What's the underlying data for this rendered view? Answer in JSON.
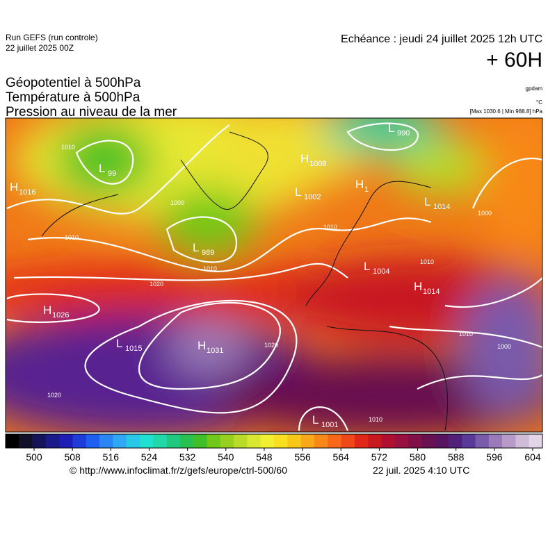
{
  "header": {
    "run": "Run GEFS (run controle)",
    "run_date": "22 juillet 2025 00Z",
    "valid": "Echéance : jeudi 24 juillet 2025 12h UTC",
    "lead": "+ 60H",
    "fields": [
      "Géopotentiel à 500hPa",
      "Température à 500hPa",
      "Pression au niveau de la mer"
    ],
    "units": [
      "gpdam",
      "°C"
    ],
    "range": "[Max 1030.6 | Min 988.8] hPa"
  },
  "map": {
    "centers": [
      {
        "type": "H",
        "value": "1016"
      },
      {
        "type": "L",
        "value": "99"
      },
      {
        "type": "L",
        "value": "990"
      },
      {
        "type": "H",
        "value": "1008"
      },
      {
        "type": "L",
        "value": "1002"
      },
      {
        "type": "H",
        "value": "1"
      },
      {
        "type": "L",
        "value": "1014"
      },
      {
        "type": "L",
        "value": "989"
      },
      {
        "type": "L",
        "value": "1004"
      },
      {
        "type": "H",
        "value": "1014"
      },
      {
        "type": "H",
        "value": "1026"
      },
      {
        "type": "L",
        "value": "1015"
      },
      {
        "type": "H",
        "value": "1031"
      },
      {
        "type": "L",
        "value": "1001"
      }
    ],
    "isobar_labels": [
      "1010",
      "1010",
      "1000",
      "1010",
      "1020",
      "1020",
      "1020",
      "1010",
      "1010",
      "1000",
      "1010",
      "1000",
      "1010"
    ]
  },
  "colorbar": {
    "ticks": [
      500,
      508,
      516,
      524,
      532,
      540,
      548,
      556,
      564,
      572,
      580,
      588,
      596,
      604
    ],
    "colors": [
      "#000000",
      "#10102a",
      "#14145a",
      "#1a1a8a",
      "#1e1eb4",
      "#1e3cd8",
      "#1e5ef0",
      "#2a86f5",
      "#30a8f5",
      "#28c8e8",
      "#20e0d0",
      "#20d8a8",
      "#20c880",
      "#28c050",
      "#40c028",
      "#70c818",
      "#98d020",
      "#b8dc28",
      "#d8e830",
      "#f0f030",
      "#f8e020",
      "#f8c818",
      "#f8a818",
      "#f88818",
      "#f86818",
      "#f04818",
      "#e02818",
      "#c81820",
      "#b01030",
      "#981040",
      "#801048",
      "#681050",
      "#581460",
      "#50207a",
      "#5a3a98",
      "#7a5aaa",
      "#9a7ab8",
      "#b89ac8",
      "#d0bcd8",
      "#e4d4e8"
    ]
  },
  "footer": {
    "url": "© http://www.infoclimat.fr/z/gefs/europe/ctrl-500/60",
    "issued": "22 juil. 2025  4:10 UTC"
  }
}
